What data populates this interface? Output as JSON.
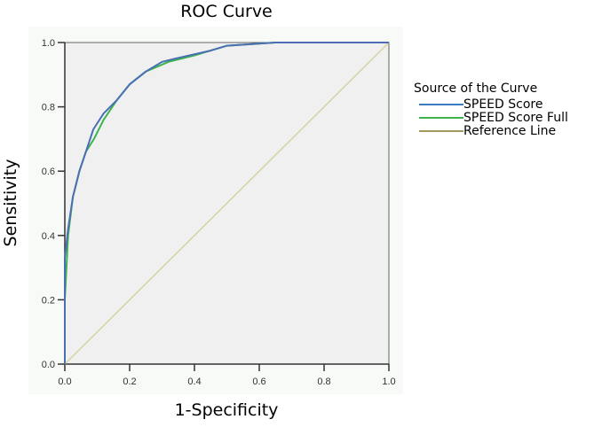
{
  "chart_data": {
    "type": "line",
    "title": "ROC Curve",
    "xlabel": "1-Specificity",
    "ylabel": "Sensitivity",
    "xlim": [
      0,
      1
    ],
    "ylim": [
      0,
      1
    ],
    "xticks": [
      "0.0",
      "0.2",
      "0.4",
      "0.6",
      "0.8",
      "1.0"
    ],
    "yticks": [
      "0.0",
      "0.2",
      "0.4",
      "0.6",
      "0.8",
      "1.0"
    ],
    "grid": false,
    "legend_title": "Source of the Curve",
    "legend_position": "right",
    "series": [
      {
        "name": "SPEED Score",
        "color": "#4a6fb5",
        "x": [
          0,
          0,
          0.01,
          0.025,
          0.045,
          0.065,
          0.088,
          0.12,
          0.16,
          0.2,
          0.25,
          0.3,
          0.34,
          0.45,
          0.5,
          0.65,
          1.0
        ],
        "y": [
          0,
          0.33,
          0.42,
          0.52,
          0.6,
          0.66,
          0.73,
          0.78,
          0.82,
          0.87,
          0.91,
          0.94,
          0.95,
          0.975,
          0.99,
          1.0,
          1.0
        ]
      },
      {
        "name": "SPEED Score Full",
        "color": "#3cb44b",
        "x": [
          0,
          0,
          0.01,
          0.025,
          0.045,
          0.065,
          0.09,
          0.12,
          0.16,
          0.2,
          0.25,
          0.32,
          0.4,
          0.5,
          0.65,
          1.0
        ],
        "y": [
          0,
          0.2,
          0.4,
          0.52,
          0.6,
          0.66,
          0.7,
          0.76,
          0.82,
          0.87,
          0.91,
          0.94,
          0.96,
          0.99,
          1.0,
          1.0
        ]
      },
      {
        "name": "Reference Line",
        "color": "#d6d3a0",
        "x": [
          0,
          1
        ],
        "y": [
          0,
          1
        ]
      }
    ]
  },
  "legend": {
    "title": "Source of the Curve",
    "items": [
      {
        "label": "SPEED Score",
        "color": "#3a7bbf"
      },
      {
        "label": "SPEED Score Full",
        "color": "#3cb44b"
      },
      {
        "label": "Reference Line",
        "color": "#a09a5e"
      }
    ]
  },
  "colors": {
    "plot_bg": "#f0f0f0",
    "panel_bg": "#f7faf7",
    "axis": "#333333"
  }
}
